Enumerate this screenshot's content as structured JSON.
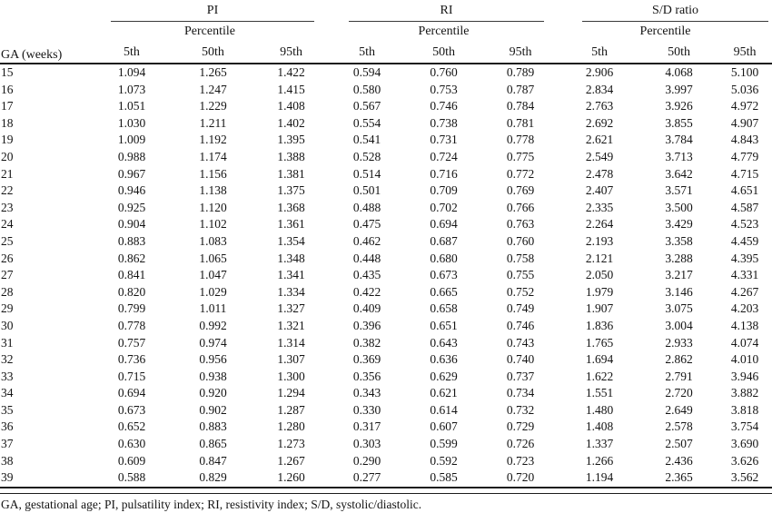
{
  "table": {
    "ga_header": "GA (weeks)",
    "groups": [
      {
        "label": "PI",
        "percentile_label": "Percentile",
        "columns": [
          "5th",
          "50th",
          "95th"
        ]
      },
      {
        "label": "RI",
        "percentile_label": "Percentile",
        "columns": [
          "5th",
          "50th",
          "95th"
        ]
      },
      {
        "label": "S/D ratio",
        "percentile_label": "Percentile",
        "columns": [
          "5th",
          "50th",
          "95th"
        ]
      }
    ],
    "rows": [
      {
        "ga": "15",
        "pi": [
          "1.094",
          "1.265",
          "1.422"
        ],
        "ri": [
          "0.594",
          "0.760",
          "0.789"
        ],
        "sd": [
          "2.906",
          "4.068",
          "5.100"
        ]
      },
      {
        "ga": "16",
        "pi": [
          "1.073",
          "1.247",
          "1.415"
        ],
        "ri": [
          "0.580",
          "0.753",
          "0.787"
        ],
        "sd": [
          "2.834",
          "3.997",
          "5.036"
        ]
      },
      {
        "ga": "17",
        "pi": [
          "1.051",
          "1.229",
          "1.408"
        ],
        "ri": [
          "0.567",
          "0.746",
          "0.784"
        ],
        "sd": [
          "2.763",
          "3.926",
          "4.972"
        ]
      },
      {
        "ga": "18",
        "pi": [
          "1.030",
          "1.211",
          "1.402"
        ],
        "ri": [
          "0.554",
          "0.738",
          "0.781"
        ],
        "sd": [
          "2.692",
          "3.855",
          "4.907"
        ]
      },
      {
        "ga": "19",
        "pi": [
          "1.009",
          "1.192",
          "1.395"
        ],
        "ri": [
          "0.541",
          "0.731",
          "0.778"
        ],
        "sd": [
          "2.621",
          "3.784",
          "4.843"
        ]
      },
      {
        "ga": "20",
        "pi": [
          "0.988",
          "1.174",
          "1.388"
        ],
        "ri": [
          "0.528",
          "0.724",
          "0.775"
        ],
        "sd": [
          "2.549",
          "3.713",
          "4.779"
        ]
      },
      {
        "ga": "21",
        "pi": [
          "0.967",
          "1.156",
          "1.381"
        ],
        "ri": [
          "0.514",
          "0.716",
          "0.772"
        ],
        "sd": [
          "2.478",
          "3.642",
          "4.715"
        ]
      },
      {
        "ga": "22",
        "pi": [
          "0.946",
          "1.138",
          "1.375"
        ],
        "ri": [
          "0.501",
          "0.709",
          "0.769"
        ],
        "sd": [
          "2.407",
          "3.571",
          "4.651"
        ]
      },
      {
        "ga": "23",
        "pi": [
          "0.925",
          "1.120",
          "1.368"
        ],
        "ri": [
          "0.488",
          "0.702",
          "0.766"
        ],
        "sd": [
          "2.335",
          "3.500",
          "4.587"
        ]
      },
      {
        "ga": "24",
        "pi": [
          "0.904",
          "1.102",
          "1.361"
        ],
        "ri": [
          "0.475",
          "0.694",
          "0.763"
        ],
        "sd": [
          "2.264",
          "3.429",
          "4.523"
        ]
      },
      {
        "ga": "25",
        "pi": [
          "0.883",
          "1.083",
          "1.354"
        ],
        "ri": [
          "0.462",
          "0.687",
          "0.760"
        ],
        "sd": [
          "2.193",
          "3.358",
          "4.459"
        ]
      },
      {
        "ga": "26",
        "pi": [
          "0.862",
          "1.065",
          "1.348"
        ],
        "ri": [
          "0.448",
          "0.680",
          "0.758"
        ],
        "sd": [
          "2.121",
          "3.288",
          "4.395"
        ]
      },
      {
        "ga": "27",
        "pi": [
          "0.841",
          "1.047",
          "1.341"
        ],
        "ri": [
          "0.435",
          "0.673",
          "0.755"
        ],
        "sd": [
          "2.050",
          "3.217",
          "4.331"
        ]
      },
      {
        "ga": "28",
        "pi": [
          "0.820",
          "1.029",
          "1.334"
        ],
        "ri": [
          "0.422",
          "0.665",
          "0.752"
        ],
        "sd": [
          "1.979",
          "3.146",
          "4.267"
        ]
      },
      {
        "ga": "29",
        "pi": [
          "0.799",
          "1.011",
          "1.327"
        ],
        "ri": [
          "0.409",
          "0.658",
          "0.749"
        ],
        "sd": [
          "1.907",
          "3.075",
          "4.203"
        ]
      },
      {
        "ga": "30",
        "pi": [
          "0.778",
          "0.992",
          "1.321"
        ],
        "ri": [
          "0.396",
          "0.651",
          "0.746"
        ],
        "sd": [
          "1.836",
          "3.004",
          "4.138"
        ]
      },
      {
        "ga": "31",
        "pi": [
          "0.757",
          "0.974",
          "1.314"
        ],
        "ri": [
          "0.382",
          "0.643",
          "0.743"
        ],
        "sd": [
          "1.765",
          "2.933",
          "4.074"
        ]
      },
      {
        "ga": "32",
        "pi": [
          "0.736",
          "0.956",
          "1.307"
        ],
        "ri": [
          "0.369",
          "0.636",
          "0.740"
        ],
        "sd": [
          "1.694",
          "2.862",
          "4.010"
        ]
      },
      {
        "ga": "33",
        "pi": [
          "0.715",
          "0.938",
          "1.300"
        ],
        "ri": [
          "0.356",
          "0.629",
          "0.737"
        ],
        "sd": [
          "1.622",
          "2.791",
          "3.946"
        ]
      },
      {
        "ga": "34",
        "pi": [
          "0.694",
          "0.920",
          "1.294"
        ],
        "ri": [
          "0.343",
          "0.621",
          "0.734"
        ],
        "sd": [
          "1.551",
          "2.720",
          "3.882"
        ]
      },
      {
        "ga": "35",
        "pi": [
          "0.673",
          "0.902",
          "1.287"
        ],
        "ri": [
          "0.330",
          "0.614",
          "0.732"
        ],
        "sd": [
          "1.480",
          "2.649",
          "3.818"
        ]
      },
      {
        "ga": "36",
        "pi": [
          "0.652",
          "0.883",
          "1.280"
        ],
        "ri": [
          "0.317",
          "0.607",
          "0.729"
        ],
        "sd": [
          "1.408",
          "2.578",
          "3.754"
        ]
      },
      {
        "ga": "37",
        "pi": [
          "0.630",
          "0.865",
          "1.273"
        ],
        "ri": [
          "0.303",
          "0.599",
          "0.726"
        ],
        "sd": [
          "1.337",
          "2.507",
          "3.690"
        ]
      },
      {
        "ga": "38",
        "pi": [
          "0.609",
          "0.847",
          "1.267"
        ],
        "ri": [
          "0.290",
          "0.592",
          "0.723"
        ],
        "sd": [
          "1.266",
          "2.436",
          "3.626"
        ]
      },
      {
        "ga": "39",
        "pi": [
          "0.588",
          "0.829",
          "1.260"
        ],
        "ri": [
          "0.277",
          "0.585",
          "0.720"
        ],
        "sd": [
          "1.194",
          "2.365",
          "3.562"
        ]
      }
    ],
    "footnote": "GA, gestational age; PI, pulsatility index; RI, resistivity index; S/D, systolic/diastolic.",
    "colors": {
      "text": "#141414",
      "rule": "#1c1c1c",
      "background": "#ffffff"
    }
  }
}
